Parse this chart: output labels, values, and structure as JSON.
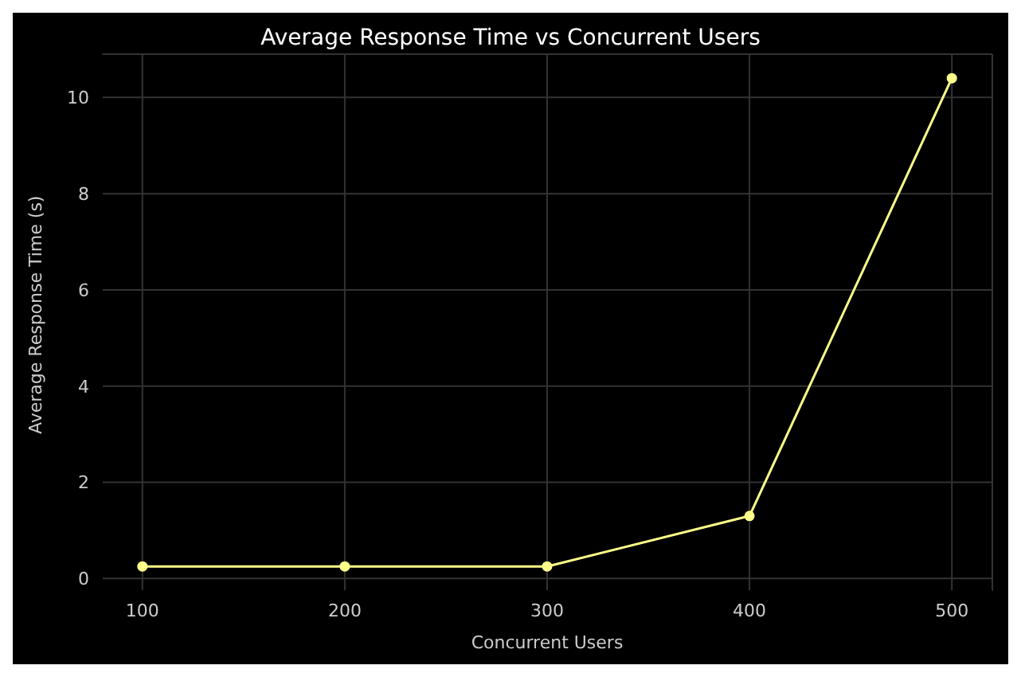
{
  "chart_data": {
    "type": "line",
    "title": "Average Response Time vs Concurrent Users",
    "xlabel": "Concurrent Users",
    "ylabel": "Average Response Time (s)",
    "x": [
      100,
      200,
      300,
      400,
      500
    ],
    "series": [
      {
        "color": "#ffff8a",
        "values": [
          0.25,
          0.25,
          0.25,
          1.3,
          10.4
        ]
      }
    ],
    "xlim": [
      80,
      520
    ],
    "xticks": [
      100,
      200,
      300,
      400,
      500
    ],
    "ylim": [
      -0.26,
      10.9
    ],
    "yticks": [
      0,
      2,
      4,
      6,
      8,
      10
    ],
    "grid": true,
    "marker": "circle",
    "line_style": "solid",
    "legend": false
  }
}
